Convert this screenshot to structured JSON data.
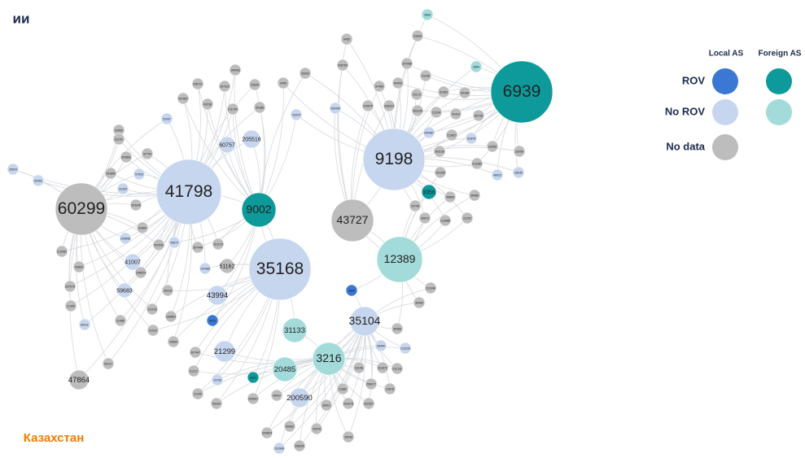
{
  "header": {
    "title": "ии"
  },
  "legend": {
    "columns": [
      "Local AS",
      "Foreign AS"
    ],
    "rows": [
      "ROV",
      "No ROV",
      "No data"
    ]
  },
  "footer": {
    "country": "Казахстан"
  },
  "nodes": [
    {
      "label": "6939",
      "status": "ROV",
      "origin": "Foreign AS"
    },
    {
      "label": "9198",
      "status": "No ROV",
      "origin": "Local AS"
    },
    {
      "label": "41798",
      "status": "No ROV",
      "origin": "Local AS"
    },
    {
      "label": "60299",
      "status": "No data"
    },
    {
      "label": "9002",
      "status": "ROV",
      "origin": "Foreign AS"
    },
    {
      "label": "43727",
      "status": "No data"
    },
    {
      "label": "35168",
      "status": "No ROV",
      "origin": "Local AS"
    },
    {
      "label": "12389",
      "status": "No ROV",
      "origin": "Foreign AS"
    },
    {
      "label": "35104",
      "status": "No ROV",
      "origin": "Local AS"
    },
    {
      "label": "3216",
      "status": "No ROV",
      "origin": "Foreign AS"
    },
    {
      "label": "31133",
      "status": "No ROV",
      "origin": "Foreign AS"
    },
    {
      "label": "20485",
      "status": "No ROV",
      "origin": "Foreign AS"
    },
    {
      "label": "21299",
      "status": "No ROV",
      "origin": "Local AS"
    },
    {
      "label": "43994",
      "status": "No ROV",
      "origin": "Local AS"
    },
    {
      "label": "41007",
      "status": "No ROV",
      "origin": "Local AS"
    },
    {
      "label": "59683",
      "status": "No ROV",
      "origin": "Local AS"
    },
    {
      "label": "47864",
      "status": "No data"
    },
    {
      "label": "200590",
      "status": "No ROV",
      "origin": "Local AS"
    },
    {
      "label": "60757",
      "status": "No ROV",
      "origin": "Local AS"
    },
    {
      "label": "205516",
      "status": "No ROV",
      "origin": "Local AS"
    },
    {
      "label": "51162",
      "status": "No data"
    },
    {
      "label": "3356",
      "status": "ROV",
      "origin": "Foreign AS"
    },
    {
      "label": "3666",
      "status": "No ROV",
      "origin": "Foreign AS"
    },
    {
      "label": "31833",
      "status": "No data"
    },
    {
      "label": "9455",
      "status": "No data"
    },
    {
      "label": "2854",
      "status": "No ROV",
      "origin": "Foreign AS"
    },
    {
      "label": "208768",
      "status": "No data"
    },
    {
      "label": "207988",
      "status": "No data"
    },
    {
      "label": "21246",
      "status": "No data"
    },
    {
      "label": "196463",
      "status": "No data"
    },
    {
      "label": "206721",
      "status": "No data"
    },
    {
      "label": "207223",
      "status": "No data"
    },
    {
      "label": "25549",
      "status": "No data"
    },
    {
      "label": "9450",
      "status": "No data"
    },
    {
      "label": "39002",
      "status": "No data"
    },
    {
      "label": "207857",
      "status": "No data"
    },
    {
      "label": "43238",
      "status": "No data"
    },
    {
      "label": "211760",
      "status": "No data"
    },
    {
      "label": "39186",
      "status": "No data"
    },
    {
      "label": "43370",
      "status": "No ROV",
      "origin": "Local AS"
    },
    {
      "label": "209450",
      "status": "No ROV",
      "origin": "Local AS"
    },
    {
      "label": "215675",
      "status": "No data"
    },
    {
      "label": "208324",
      "status": "No data"
    },
    {
      "label": "41173",
      "status": "No data"
    },
    {
      "label": "51069",
      "status": "No data"
    },
    {
      "label": "60186",
      "status": "No data"
    },
    {
      "label": "21234",
      "status": "No data"
    },
    {
      "label": "41410",
      "status": "No data"
    },
    {
      "label": "60738",
      "status": "No data"
    },
    {
      "label": "57469",
      "status": "No data"
    },
    {
      "label": "50490",
      "status": "No data"
    },
    {
      "label": "51097",
      "status": "No ROV",
      "origin": "Local AS"
    },
    {
      "label": "20569",
      "status": "No data"
    },
    {
      "label": "61193",
      "status": "No data"
    },
    {
      "label": "200862",
      "status": "No data"
    },
    {
      "label": "57794",
      "status": "No data"
    },
    {
      "label": "203509",
      "status": "No data"
    },
    {
      "label": "57626",
      "status": "No ROV",
      "origin": "Local AS"
    },
    {
      "label": "25534",
      "status": "No ROV",
      "origin": "Local AS"
    },
    {
      "label": "62062",
      "status": "No ROV",
      "origin": "Local AS"
    },
    {
      "label": "31325",
      "status": "No ROV",
      "origin": "Local AS"
    },
    {
      "label": "203340",
      "status": "No data"
    },
    {
      "label": "41800",
      "status": "No data"
    },
    {
      "label": "200658",
      "status": "No ROV",
      "origin": "Local AS"
    },
    {
      "label": "212081",
      "status": "No data"
    },
    {
      "label": "43809",
      "status": "No data"
    },
    {
      "label": "197079",
      "status": "No data"
    },
    {
      "label": "21345",
      "status": "No data"
    },
    {
      "label": "60411",
      "status": "No ROV",
      "origin": "Local AS"
    },
    {
      "label": "21485",
      "status": "No data"
    },
    {
      "label": "50127",
      "status": "No data"
    },
    {
      "label": "208524",
      "status": "No data"
    },
    {
      "label": "39318",
      "status": "No data"
    },
    {
      "label": "211153",
      "status": "No data"
    },
    {
      "label": "198803",
      "status": "No data"
    },
    {
      "label": "21232",
      "status": "No data"
    },
    {
      "label": "43654",
      "status": "No data"
    },
    {
      "label": "207448",
      "status": "No data"
    },
    {
      "label": "201179",
      "status": "No data"
    },
    {
      "label": "197686",
      "status": "No ROV",
      "origin": "Local AS"
    },
    {
      "label": "202530",
      "status": "No data"
    },
    {
      "label": "43673",
      "status": "No ROV",
      "origin": "Local AS"
    },
    {
      "label": "207447",
      "status": "No data"
    },
    {
      "label": "21217",
      "status": "No data"
    },
    {
      "label": "21240",
      "status": "No data"
    },
    {
      "label": "50294",
      "status": "No data"
    },
    {
      "label": "15736",
      "status": "No ROV",
      "origin": "Local AS"
    },
    {
      "label": "8201",
      "status": "ROV",
      "origin": "Foreign AS"
    },
    {
      "label": "8529",
      "status": "ROV",
      "origin": "Local AS"
    },
    {
      "label": "8888",
      "status": "ROV",
      "origin": "Local AS"
    },
    {
      "label": "205507",
      "status": "No data"
    },
    {
      "label": "49007",
      "status": "No data"
    },
    {
      "label": "39021",
      "status": "No data"
    },
    {
      "label": "201078",
      "status": "No data"
    },
    {
      "label": "202527",
      "status": "No data"
    },
    {
      "label": "204804",
      "status": "No data"
    },
    {
      "label": "49363",
      "status": "No data"
    },
    {
      "label": "208205",
      "status": "No data"
    },
    {
      "label": "202966",
      "status": "No ROV",
      "origin": "Local AS"
    },
    {
      "label": "20978",
      "status": "No data"
    },
    {
      "label": "35040",
      "status": "No data"
    },
    {
      "label": "21882",
      "status": "No data"
    },
    {
      "label": "31198",
      "status": "No data"
    },
    {
      "label": "206077",
      "status": "No data"
    },
    {
      "label": "23678",
      "status": "No data"
    },
    {
      "label": "213272",
      "status": "No data"
    },
    {
      "label": "212111",
      "status": "No data"
    },
    {
      "label": "28450",
      "status": "No ROV",
      "origin": "Local AS"
    },
    {
      "label": "213226",
      "status": "No ROV",
      "origin": "Local AS"
    },
    {
      "label": "36366",
      "status": "No data"
    },
    {
      "label": "35400",
      "status": "No data"
    },
    {
      "label": "211948",
      "status": "No data"
    },
    {
      "label": "20746",
      "status": "No data"
    },
    {
      "label": "30873",
      "status": "No data"
    },
    {
      "label": "213686",
      "status": "No data"
    },
    {
      "label": "21252",
      "status": "No data"
    },
    {
      "label": "32059",
      "status": "No data"
    },
    {
      "label": "29355",
      "status": "No data"
    },
    {
      "label": "28035",
      "status": "No ROV",
      "origin": "Local AS"
    },
    {
      "label": "48923",
      "status": "No ROV",
      "origin": "Local AS"
    },
    {
      "label": "36486",
      "status": "No data"
    },
    {
      "label": "48880",
      "status": "No data"
    },
    {
      "label": "213380",
      "status": "No data"
    },
    {
      "label": "201330",
      "status": "No data"
    },
    {
      "label": "203128",
      "status": "No data"
    },
    {
      "label": "213827",
      "status": "No data"
    },
    {
      "label": "51878",
      "status": "No ROV",
      "origin": "Local AS"
    },
    {
      "label": "200087",
      "status": "No ROV",
      "origin": "Local AS"
    },
    {
      "label": "203126",
      "status": "No data"
    }
  ]
}
